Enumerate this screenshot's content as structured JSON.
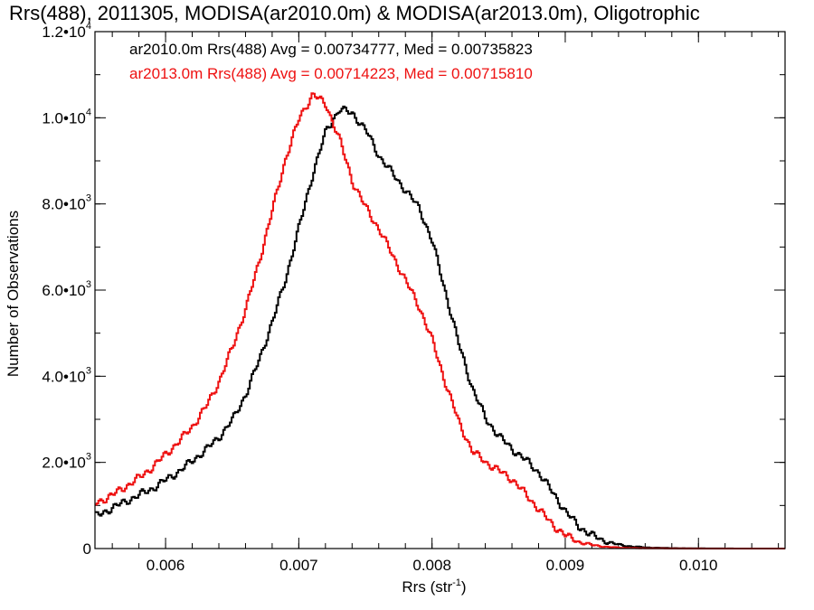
{
  "chart_data": {
    "type": "line",
    "step": true,
    "title": "Rrs(488), 2011305, MODISA(ar2010.0m) & MODISA(ar2013.0m), Oligotrophic",
    "xlabel_base": "Rrs (str",
    "xlabel_sup": "-1",
    "xlabel_close": ")",
    "ylabel": "Number of Observations",
    "xlim": [
      0.00547,
      0.01065
    ],
    "ylim": [
      0,
      12000
    ],
    "x_ticks": [
      {
        "value": 0.006,
        "label": "0.006"
      },
      {
        "value": 0.007,
        "label": "0.007"
      },
      {
        "value": 0.008,
        "label": "0.008"
      },
      {
        "value": 0.009,
        "label": "0.009"
      },
      {
        "value": 0.01,
        "label": "0.010"
      }
    ],
    "y_ticks": [
      {
        "value": 0,
        "base": "0",
        "sup": ""
      },
      {
        "value": 2000,
        "base": "2.0•10",
        "sup": "3"
      },
      {
        "value": 4000,
        "base": "4.0•10",
        "sup": "3"
      },
      {
        "value": 6000,
        "base": "6.0•10",
        "sup": "3"
      },
      {
        "value": 8000,
        "base": "8.0•10",
        "sup": "3"
      },
      {
        "value": 10000,
        "base": "1.0•10",
        "sup": "4"
      },
      {
        "value": 12000,
        "base": "1.2•10",
        "sup": "4"
      }
    ],
    "x_minor_step": 0.0002,
    "y_minor_step": 1000,
    "legend_position": "top-left",
    "series": [
      {
        "label": "ar2010.0m Rrs(488) Avg = 0.00734777, Med = 0.00735823",
        "color": "#000000",
        "x": [
          0.00547,
          0.0056,
          0.0057,
          0.0058,
          0.0059,
          0.006,
          0.0061,
          0.0062,
          0.0063,
          0.0064,
          0.0065,
          0.0066,
          0.0067,
          0.0068,
          0.0069,
          0.007,
          0.0071,
          0.0072,
          0.0073,
          0.0074,
          0.0075,
          0.0076,
          0.0077,
          0.0078,
          0.0079,
          0.008,
          0.0081,
          0.0082,
          0.0083,
          0.0084,
          0.0085,
          0.0086,
          0.0087,
          0.0088,
          0.0089,
          0.009,
          0.0091,
          0.0092,
          0.0093,
          0.0094,
          0.0095,
          0.0096,
          0.0097,
          0.0098,
          0.0099,
          0.01,
          0.0101,
          0.0102,
          0.0103,
          0.0104,
          0.01065
        ],
        "y": [
          750,
          950,
          1100,
          1250,
          1400,
          1600,
          1800,
          2050,
          2300,
          2600,
          3000,
          3600,
          4400,
          5300,
          6300,
          7500,
          8700,
          9700,
          10200,
          10100,
          9700,
          9100,
          8700,
          8300,
          7900,
          7100,
          5900,
          4700,
          3700,
          3000,
          2600,
          2300,
          2050,
          1750,
          1300,
          850,
          500,
          300,
          160,
          85,
          45,
          25,
          15,
          10,
          5,
          3,
          2,
          1,
          1,
          0,
          0
        ]
      },
      {
        "label": "ar2013.0m Rrs(488) Avg = 0.00714223, Med = 0.00715810",
        "color": "#ee1111",
        "x": [
          0.00547,
          0.0056,
          0.0057,
          0.0058,
          0.0059,
          0.006,
          0.0061,
          0.0062,
          0.0063,
          0.0064,
          0.0065,
          0.0066,
          0.0067,
          0.0068,
          0.0069,
          0.007,
          0.0071,
          0.0072,
          0.0073,
          0.0074,
          0.0075,
          0.0076,
          0.0077,
          0.0078,
          0.0079,
          0.008,
          0.0081,
          0.0082,
          0.0083,
          0.0084,
          0.0085,
          0.0086,
          0.0087,
          0.0088,
          0.0089,
          0.009,
          0.0091,
          0.0092,
          0.0093,
          0.0094,
          0.0095,
          0.0096,
          0.0097,
          0.0098,
          0.0099,
          0.01,
          0.0101,
          0.0102,
          0.0103,
          0.0104,
          0.01065
        ],
        "y": [
          1050,
          1250,
          1450,
          1650,
          1900,
          2200,
          2500,
          2850,
          3300,
          3900,
          4700,
          5600,
          6700,
          7900,
          9100,
          10000,
          10550,
          10300,
          9500,
          8500,
          7900,
          7400,
          6800,
          6200,
          5600,
          4800,
          3800,
          2900,
          2250,
          2000,
          1800,
          1600,
          1250,
          900,
          550,
          300,
          150,
          80,
          40,
          20,
          10,
          6,
          4,
          2,
          1,
          1,
          0,
          0,
          0,
          0,
          0
        ]
      }
    ]
  }
}
